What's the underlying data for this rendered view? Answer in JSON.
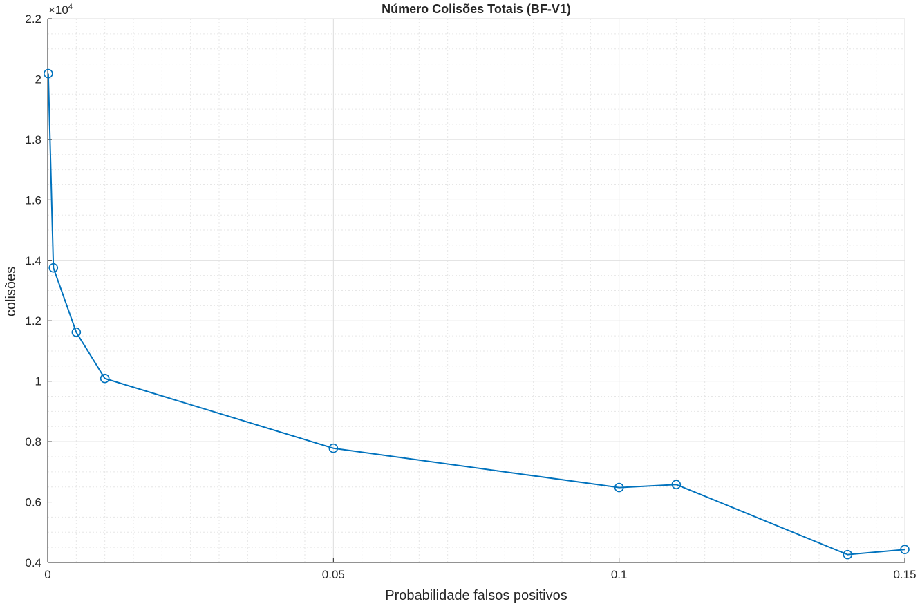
{
  "chart_data": {
    "type": "line",
    "title": "Número Colisões Totais (BF-V1)",
    "xlabel": "Probabilidade falsos positivos",
    "ylabel": "colisões",
    "xlim": [
      0,
      0.15
    ],
    "ylim": [
      4000,
      22000
    ],
    "x_ticks": [
      0,
      0.05,
      0.1,
      0.15
    ],
    "x_tick_labels": [
      "0",
      "0.05",
      "0.1",
      "0.15"
    ],
    "y_ticks": [
      4000,
      6000,
      8000,
      10000,
      12000,
      14000,
      16000,
      18000,
      20000,
      22000
    ],
    "y_tick_labels": [
      "0.4",
      "0.6",
      "0.8",
      "1",
      "1.2",
      "1.4",
      "1.6",
      "1.8",
      "2",
      "2.2"
    ],
    "y_exponent_base": "×10",
    "y_exponent_power": "4",
    "grid": true,
    "minor_grid": true,
    "series": [
      {
        "x": [
          0.0001,
          0.001,
          0.005,
          0.01,
          0.05,
          0.1,
          0.11,
          0.14,
          0.15
        ],
        "y": [
          20180,
          13750,
          11620,
          10090,
          7780,
          6480,
          6580,
          4260,
          4430
        ],
        "color": "#0072BD",
        "marker": "circle"
      }
    ]
  }
}
